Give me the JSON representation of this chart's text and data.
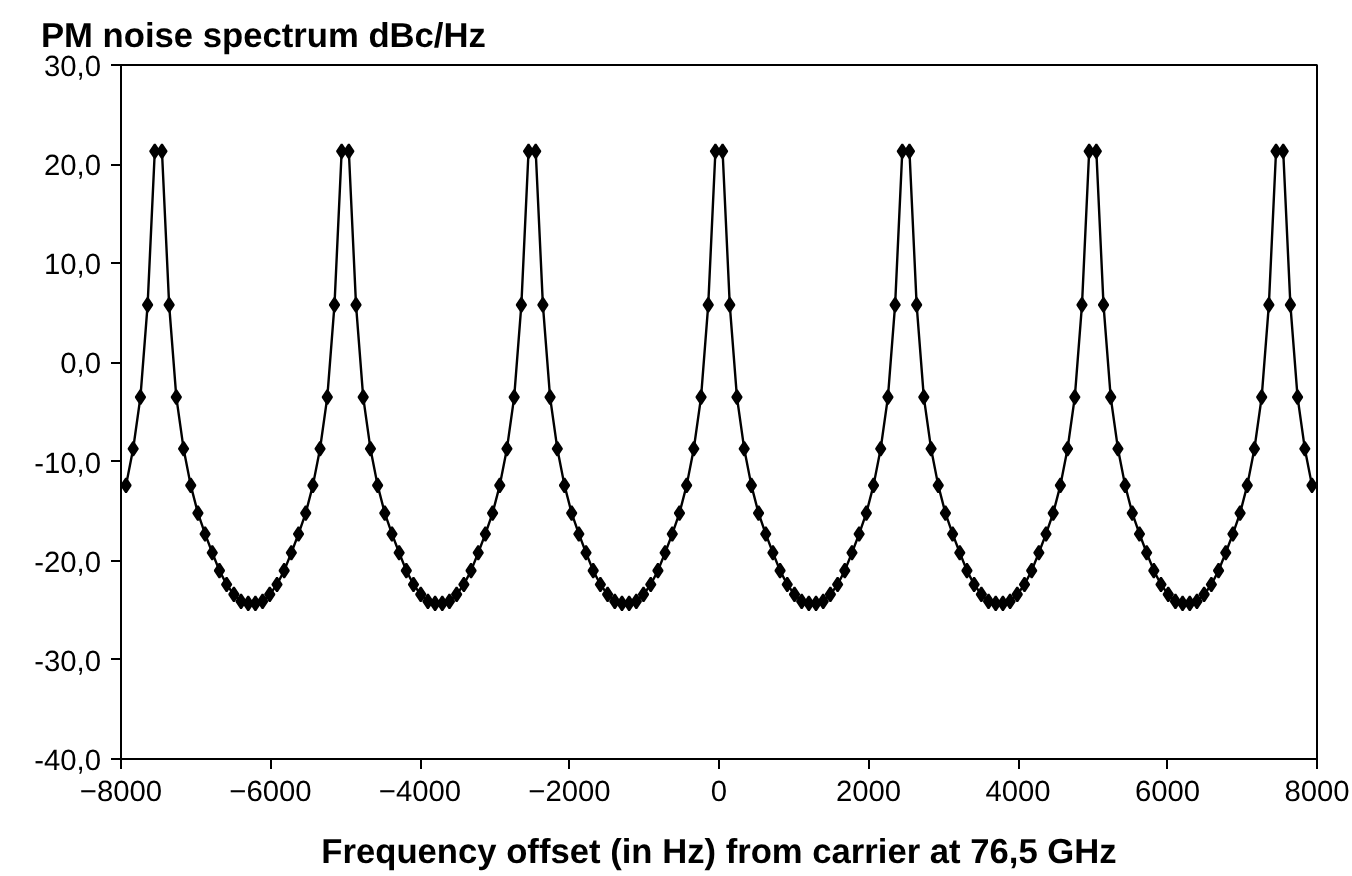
{
  "chart_data": {
    "type": "line",
    "title": "PM noise spectrum dBc/Hz",
    "xlabel": "Frequency offset (in Hz) from carrier at 76,5 GHz",
    "xlim": [
      -8000,
      8000
    ],
    "xticks": [
      -8000,
      -6000,
      -4000,
      -2000,
      0,
      2000,
      4000,
      6000,
      8000
    ],
    "ylim": [
      -40,
      30
    ],
    "yticks": [
      {
        "value": -40,
        "label": "-40,0"
      },
      {
        "value": -30,
        "label": "-30,0"
      },
      {
        "value": -20,
        "label": "-20,0"
      },
      {
        "value": -10,
        "label": "-10,0"
      },
      {
        "value": 0,
        "label": "0,0"
      },
      {
        "value": 10,
        "label": "10,0"
      },
      {
        "value": 20,
        "label": "20,0"
      },
      {
        "value": 30,
        "label": "30,0"
      }
    ],
    "grid": false,
    "marker": "diamond",
    "line_style": "solid",
    "series": [
      {
        "color": "#000000",
        "x": [
          -7933,
          -7837,
          -7740,
          -7644,
          -7548,
          -7452,
          -7356,
          -7260,
          -7163,
          -7067,
          -6971,
          -6875,
          -6779,
          -6683,
          -6587,
          -6490,
          -6394,
          -6298,
          -6202,
          -6106,
          -6010,
          -5913,
          -5817,
          -5721,
          -5625,
          -5529,
          -5433,
          -5337,
          -5240,
          -5144,
          -5048,
          -4952,
          -4856,
          -4760,
          -4663,
          -4567,
          -4471,
          -4375,
          -4279,
          -4183,
          -4087,
          -3990,
          -3894,
          -3798,
          -3702,
          -3606,
          -3510,
          -3413,
          -3317,
          -3221,
          -3125,
          -3029,
          -2933,
          -2837,
          -2740,
          -2644,
          -2548,
          -2452,
          -2356,
          -2260,
          -2163,
          -2067,
          -1971,
          -1875,
          -1779,
          -1683,
          -1587,
          -1490,
          -1394,
          -1298,
          -1202,
          -1106,
          -1010,
          -913,
          -817,
          -721,
          -625,
          -529,
          -433,
          -337,
          -240,
          -144,
          -48,
          48,
          144,
          240,
          337,
          433,
          529,
          625,
          721,
          817,
          913,
          1010,
          1106,
          1202,
          1298,
          1394,
          1490,
          1587,
          1683,
          1779,
          1875,
          1971,
          2067,
          2163,
          2260,
          2356,
          2452,
          2548,
          2644,
          2740,
          2837,
          2933,
          3029,
          3125,
          3221,
          3317,
          3413,
          3510,
          3606,
          3702,
          3798,
          3894,
          3990,
          4087,
          4183,
          4279,
          4375,
          4471,
          4567,
          4663,
          4760,
          4856,
          4952,
          5048,
          5144,
          5240,
          5337,
          5433,
          5529,
          5625,
          5721,
          5817,
          5913,
          6010,
          6106,
          6202,
          6298,
          6394,
          6490,
          6587,
          6683,
          6779,
          6875,
          6971,
          7067,
          7163,
          7260,
          7356,
          7452,
          7548,
          7644,
          7740,
          7837,
          7933
        ],
        "values": [
          -12.4,
          -8.7,
          -3.5,
          5.8,
          21.3,
          21.3,
          5.8,
          -3.5,
          -8.7,
          -12.4,
          -15.2,
          -17.3,
          -19.2,
          -21,
          -22.4,
          -23.4,
          -24.1,
          -24.3,
          -24.3,
          -24.1,
          -23.4,
          -22.4,
          -21,
          -19.2,
          -17.3,
          -15.2,
          -12.4,
          -8.7,
          -3.5,
          5.8,
          21.3,
          21.3,
          5.8,
          -3.5,
          -8.7,
          -12.4,
          -15.2,
          -17.3,
          -19.2,
          -21,
          -22.4,
          -23.4,
          -24.1,
          -24.3,
          -24.3,
          -24.1,
          -23.4,
          -22.4,
          -21,
          -19.2,
          -17.3,
          -15.2,
          -12.4,
          -8.7,
          -3.5,
          5.8,
          21.3,
          21.3,
          5.8,
          -3.5,
          -8.7,
          -12.4,
          -15.2,
          -17.3,
          -19.2,
          -21,
          -22.4,
          -23.4,
          -24.1,
          -24.3,
          -24.3,
          -24.1,
          -23.4,
          -22.4,
          -21,
          -19.2,
          -17.3,
          -15.2,
          -12.4,
          -8.7,
          -3.5,
          5.8,
          21.3,
          21.3,
          5.8,
          -3.5,
          -8.7,
          -12.4,
          -15.2,
          -17.3,
          -19.2,
          -21,
          -22.4,
          -23.4,
          -24.1,
          -24.3,
          -24.3,
          -24.1,
          -23.4,
          -22.4,
          -21,
          -19.2,
          -17.3,
          -15.2,
          -12.4,
          -8.7,
          -3.5,
          5.8,
          21.3,
          21.3,
          5.8,
          -3.5,
          -8.7,
          -12.4,
          -15.2,
          -17.3,
          -19.2,
          -21,
          -22.4,
          -23.4,
          -24.1,
          -24.3,
          -24.3,
          -24.1,
          -23.4,
          -22.4,
          -21,
          -19.2,
          -17.3,
          -15.2,
          -12.4,
          -8.7,
          -3.5,
          5.8,
          21.3,
          21.3,
          5.8,
          -3.5,
          -8.7,
          -12.4,
          -15.2,
          -17.3,
          -19.2,
          -21,
          -22.4,
          -23.4,
          -24.1,
          -24.3,
          -24.3,
          -24.1,
          -23.4,
          -22.4,
          -21,
          -19.2,
          -17.3,
          -15.2,
          -12.4,
          -8.7,
          -3.5,
          5.8,
          21.3,
          21.3,
          5.8,
          -3.5,
          -8.7,
          -12.4
        ]
      }
    ]
  }
}
